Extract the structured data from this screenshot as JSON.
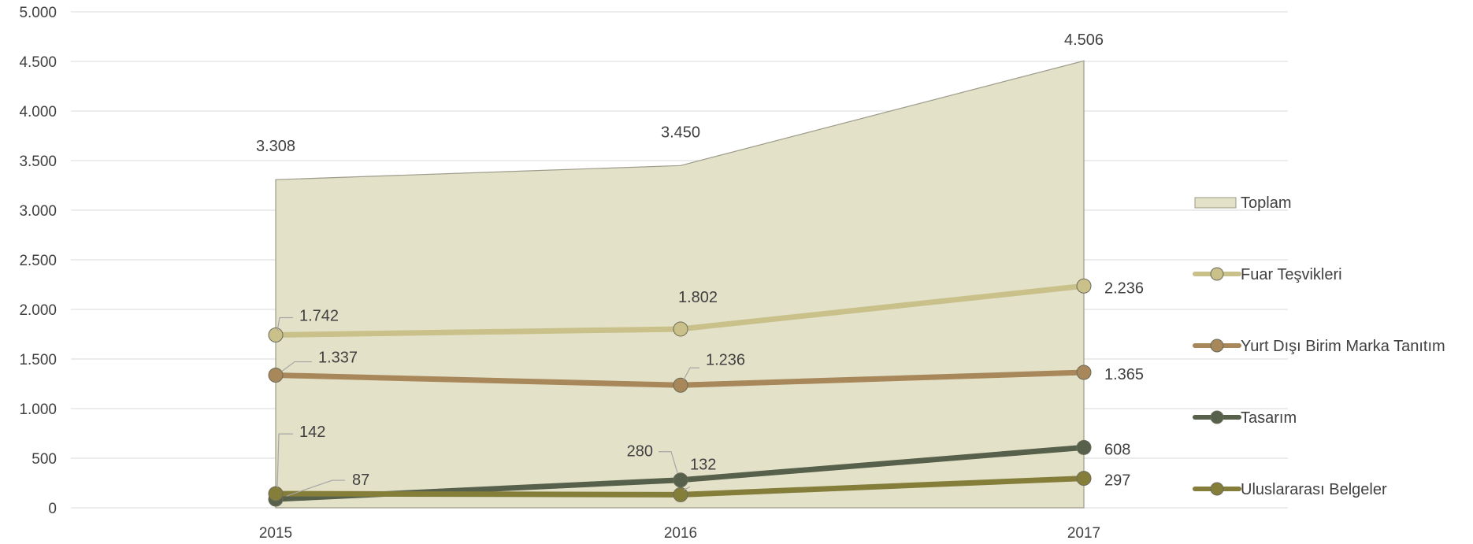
{
  "chart_data": {
    "type": "line",
    "title": "",
    "xlabel": "",
    "ylabel": "",
    "categories": [
      "2015",
      "2016",
      "2017"
    ],
    "ylim": [
      0,
      5000
    ],
    "yticks": [
      0,
      500,
      1000,
      1500,
      2000,
      2500,
      3000,
      3500,
      4000,
      4500,
      5000
    ],
    "ytick_labels": [
      "0",
      "500",
      "1.000",
      "1.500",
      "2.000",
      "2.500",
      "3.000",
      "3.500",
      "4.000",
      "4.500",
      "5.000"
    ],
    "grid": true,
    "legend_position": "right",
    "series": [
      {
        "name": "Toplam",
        "kind": "area",
        "color": "#e3e1c8",
        "values": [
          3308,
          3450,
          4506
        ],
        "labels": [
          "3.308",
          "3.450",
          "4.506"
        ]
      },
      {
        "name": "Fuar Teşvikleri",
        "kind": "line",
        "color": "#c9c08a",
        "values": [
          1742,
          1802,
          2236
        ],
        "labels": [
          "1.742",
          "1.802",
          "2.236"
        ]
      },
      {
        "name": "Yurt Dışı Birim Marka Tanıtım",
        "kind": "line",
        "color": "#a8875a",
        "values": [
          1337,
          1236,
          1365
        ],
        "labels": [
          "1.337",
          "1.236",
          "1.365"
        ]
      },
      {
        "name": "Tasarım",
        "kind": "line",
        "color": "#56604a",
        "values": [
          87,
          280,
          608
        ],
        "labels": [
          "87",
          "280",
          "608"
        ]
      },
      {
        "name": "Uluslararası Belgeler",
        "kind": "line",
        "color": "#857d3a",
        "values": [
          142,
          132,
          297
        ],
        "labels": [
          "142",
          "132",
          "297"
        ]
      }
    ]
  }
}
